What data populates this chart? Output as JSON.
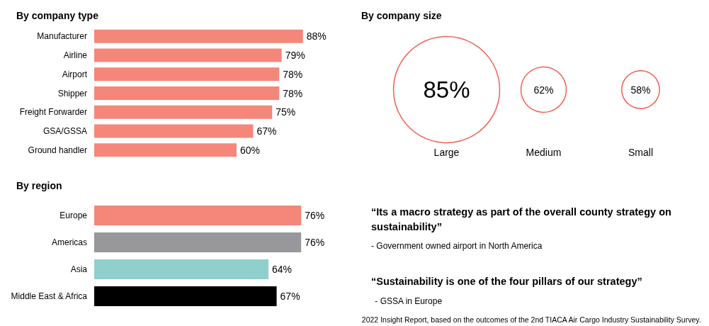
{
  "chart_data": [
    {
      "type": "bar",
      "title": "By company type",
      "orientation": "horizontal",
      "categories": [
        "Manufacturer",
        "Airline",
        "Airport",
        "Shipper",
        "Freight Forwarder",
        "GSA/GSSA",
        "Ground handler"
      ],
      "values": [
        88,
        79,
        78,
        78,
        75,
        67,
        60
      ],
      "value_labels": [
        "88%",
        "79%",
        "78%",
        "78%",
        "75%",
        "67%",
        "60%"
      ],
      "color": "#f4877a",
      "tick_labels": "y"
    },
    {
      "type": "other",
      "title": "By company size",
      "categories": [
        "Large",
        "Medium",
        "Small"
      ],
      "values": [
        85,
        62,
        58
      ],
      "value_labels": [
        "85%",
        "62%",
        "58%"
      ],
      "color": "#f0604f"
    },
    {
      "type": "bar",
      "title": "By region",
      "orientation": "horizontal",
      "categories": [
        "Europe",
        "Americas",
        "Asia",
        "Middle East & Africa"
      ],
      "values": [
        76,
        76,
        64,
        67
      ],
      "value_labels": [
        "76%",
        "76%",
        "64%",
        "67%"
      ],
      "colors": [
        "#f4877a",
        "#98989a",
        "#8fcfcc",
        "#000000"
      ],
      "tick_labels": "y"
    },
    {
      "type": "other",
      "annotations": [
        "“Its a macro strategy as part of the overall county strategy on sustainability”",
        "- Government owned airport in North America",
        "“Sustainability is one of the four pillars of our strategy”",
        " - GSSA in Europe",
        "2022 Insight Report, based on the outcomes of the 2nd TIACA Air Cargo Industry Sustainability Survey."
      ]
    }
  ]
}
